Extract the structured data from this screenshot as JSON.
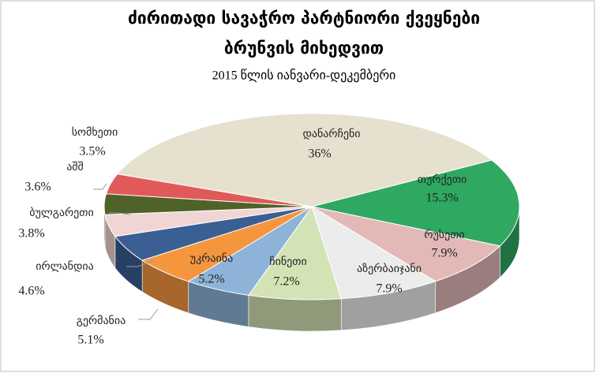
{
  "chart_data": {
    "type": "pie",
    "title": [
      "ძირითადი სავაჭრო პარტნიორი ქვეყნები",
      "ბრუნვის მიხედვით"
    ],
    "subtitle": "2015 წლის იანვარი-დეკემბერი",
    "categories": [
      "თურქეთი",
      "რუსეთი",
      "აზერბაიჯანი",
      "ჩინეთი",
      "უკრაინა",
      "გერმანია",
      "ირლანდია",
      "ბულგარეთი",
      "აშშ",
      "სომხეთი",
      "დანარჩენი"
    ],
    "values": [
      15.3,
      7.9,
      7.9,
      7.2,
      5.2,
      5.1,
      4.6,
      3.8,
      3.6,
      3.5,
      36
    ],
    "value_labels": [
      "15.3%",
      "7.9%",
      "7.9%",
      "7.2%",
      "5.2%",
      "5.1%",
      "4.6%",
      "3.8%",
      "3.6%",
      "3.5%",
      "36%"
    ],
    "colors": [
      "#2fa862",
      "#e3b9b8",
      "#ececec",
      "#d4e3b5",
      "#8db3d9",
      "#f5963f",
      "#3a5f93",
      "#f1d5d4",
      "#4f6228",
      "#e05a5a",
      "#e6e1cf"
    ]
  }
}
